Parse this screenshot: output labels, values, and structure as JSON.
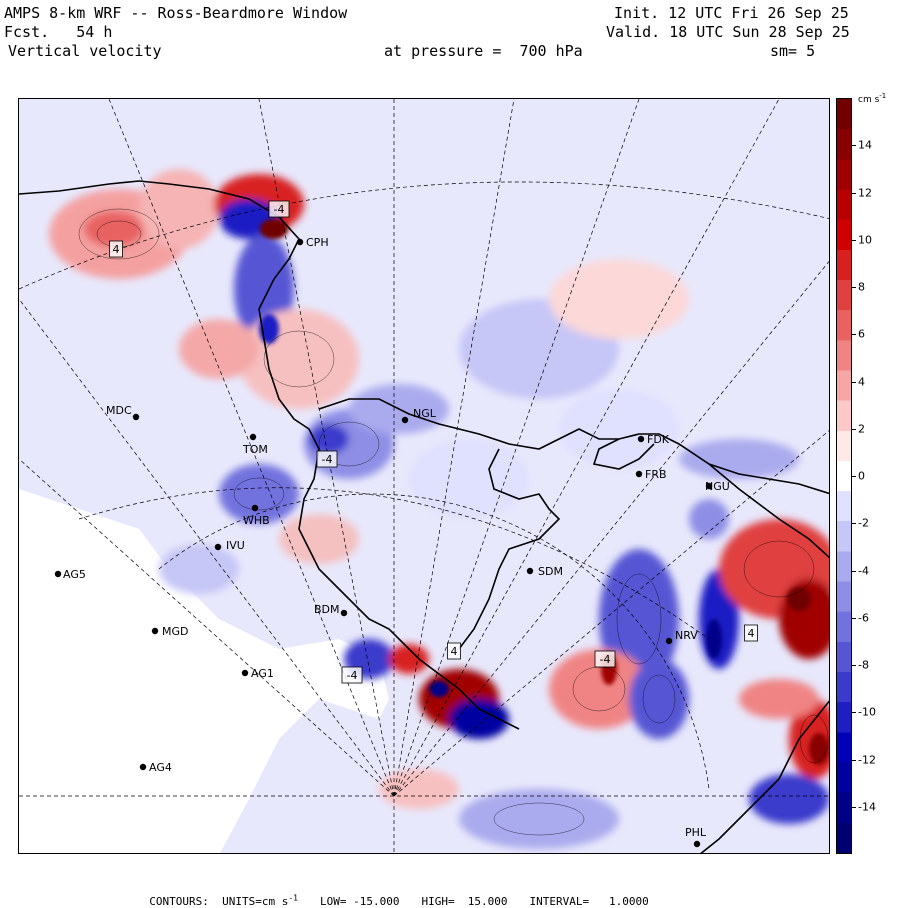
{
  "header": {
    "line1_left": "AMPS 8-km WRF -- Ross-Beardmore Window",
    "line2_left": "Fcst.   54 h",
    "line3_left": "Vertical velocity",
    "line1_right": "Init. 12 UTC Fri 26 Sep 25",
    "line2_right": "Valid. 18 UTC Sun 28 Sep 25",
    "line3_center": "at pressure =  700 hPa",
    "line3_right": "sm= 5"
  },
  "colorbar": {
    "units": "cm s",
    "units_exp": "-1",
    "labels": [
      "14",
      "12",
      "10",
      "8",
      "6",
      "4",
      "2",
      "0",
      "-2",
      "-4",
      "-6",
      "-8",
      "-10",
      "-12",
      "-14"
    ],
    "min": -16,
    "max": 16,
    "colors_positive": [
      "#ffe8e8",
      "#fcc8c8",
      "#f7a6a6",
      "#f08484",
      "#e86262",
      "#e04040",
      "#d82020",
      "#d00000",
      "#b80000",
      "#a00000",
      "#880000",
      "#700000"
    ],
    "colors_negative": [
      "#e0e0ff",
      "#c6c6f7",
      "#aaaaee",
      "#8e8ee6",
      "#7272de",
      "#5656d4",
      "#3a3acc",
      "#1e1ec4",
      "#0000b8",
      "#0000a0",
      "#000088",
      "#000070"
    ]
  },
  "footer": {
    "contours": "CONTOURS:  UNITS=cm s",
    "units_exp": "-1",
    "low": "LOW= -15.000",
    "high": "HIGH=  15.000",
    "interval": "INTERVAL=   1.0000"
  },
  "stations": [
    {
      "id": "CPH",
      "lon_lat_px": "cph"
    },
    {
      "id": "MDC"
    },
    {
      "id": "NGL"
    },
    {
      "id": "TOM"
    },
    {
      "id": "WHB"
    },
    {
      "id": "IVU"
    },
    {
      "id": "AG5"
    },
    {
      "id": "BDM"
    },
    {
      "id": "MGD"
    },
    {
      "id": "AG1"
    },
    {
      "id": "AG4"
    },
    {
      "id": "SDM"
    },
    {
      "id": "FDK"
    },
    {
      "id": "FRB"
    },
    {
      "id": "NGU"
    },
    {
      "id": "NRV"
    },
    {
      "id": "PHL"
    }
  ],
  "contour_labels": [
    "4",
    "-4",
    "-4",
    "4",
    "-4",
    "4",
    "-4"
  ]
}
